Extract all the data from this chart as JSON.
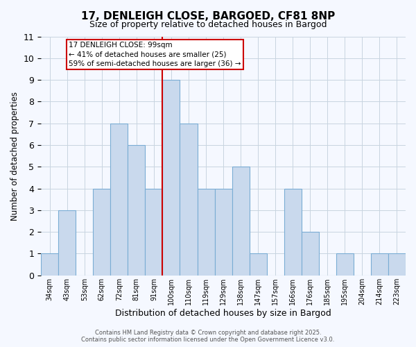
{
  "title": "17, DENLEIGH CLOSE, BARGOED, CF81 8NP",
  "subtitle": "Size of property relative to detached houses in Bargod",
  "xlabel": "Distribution of detached houses by size in Bargod",
  "ylabel": "Number of detached properties",
  "bin_labels": [
    "34sqm",
    "43sqm",
    "53sqm",
    "62sqm",
    "72sqm",
    "81sqm",
    "91sqm",
    "100sqm",
    "110sqm",
    "119sqm",
    "129sqm",
    "138sqm",
    "147sqm",
    "157sqm",
    "166sqm",
    "176sqm",
    "185sqm",
    "195sqm",
    "204sqm",
    "214sqm",
    "223sqm"
  ],
  "bar_values": [
    1,
    3,
    0,
    4,
    7,
    6,
    4,
    9,
    7,
    4,
    4,
    5,
    1,
    0,
    4,
    2,
    0,
    1,
    0,
    1,
    1
  ],
  "bar_color": "#c9d9ed",
  "bar_edge_color": "#7aadd4",
  "highlight_line_color": "#cc0000",
  "highlight_line_bin": 8,
  "ylim": [
    0,
    11
  ],
  "yticks": [
    0,
    1,
    2,
    3,
    4,
    5,
    6,
    7,
    8,
    9,
    10,
    11
  ],
  "annotation_title": "17 DENLEIGH CLOSE: 99sqm",
  "annotation_line1": "← 41% of detached houses are smaller (25)",
  "annotation_line2": "59% of semi-detached houses are larger (36) →",
  "annotation_box_color": "#ffffff",
  "annotation_box_edge": "#cc0000",
  "grid_color": "#c8d4e0",
  "background_color": "#f5f8ff",
  "footer1": "Contains HM Land Registry data © Crown copyright and database right 2025.",
  "footer2": "Contains public sector information licensed under the Open Government Licence v3.0."
}
